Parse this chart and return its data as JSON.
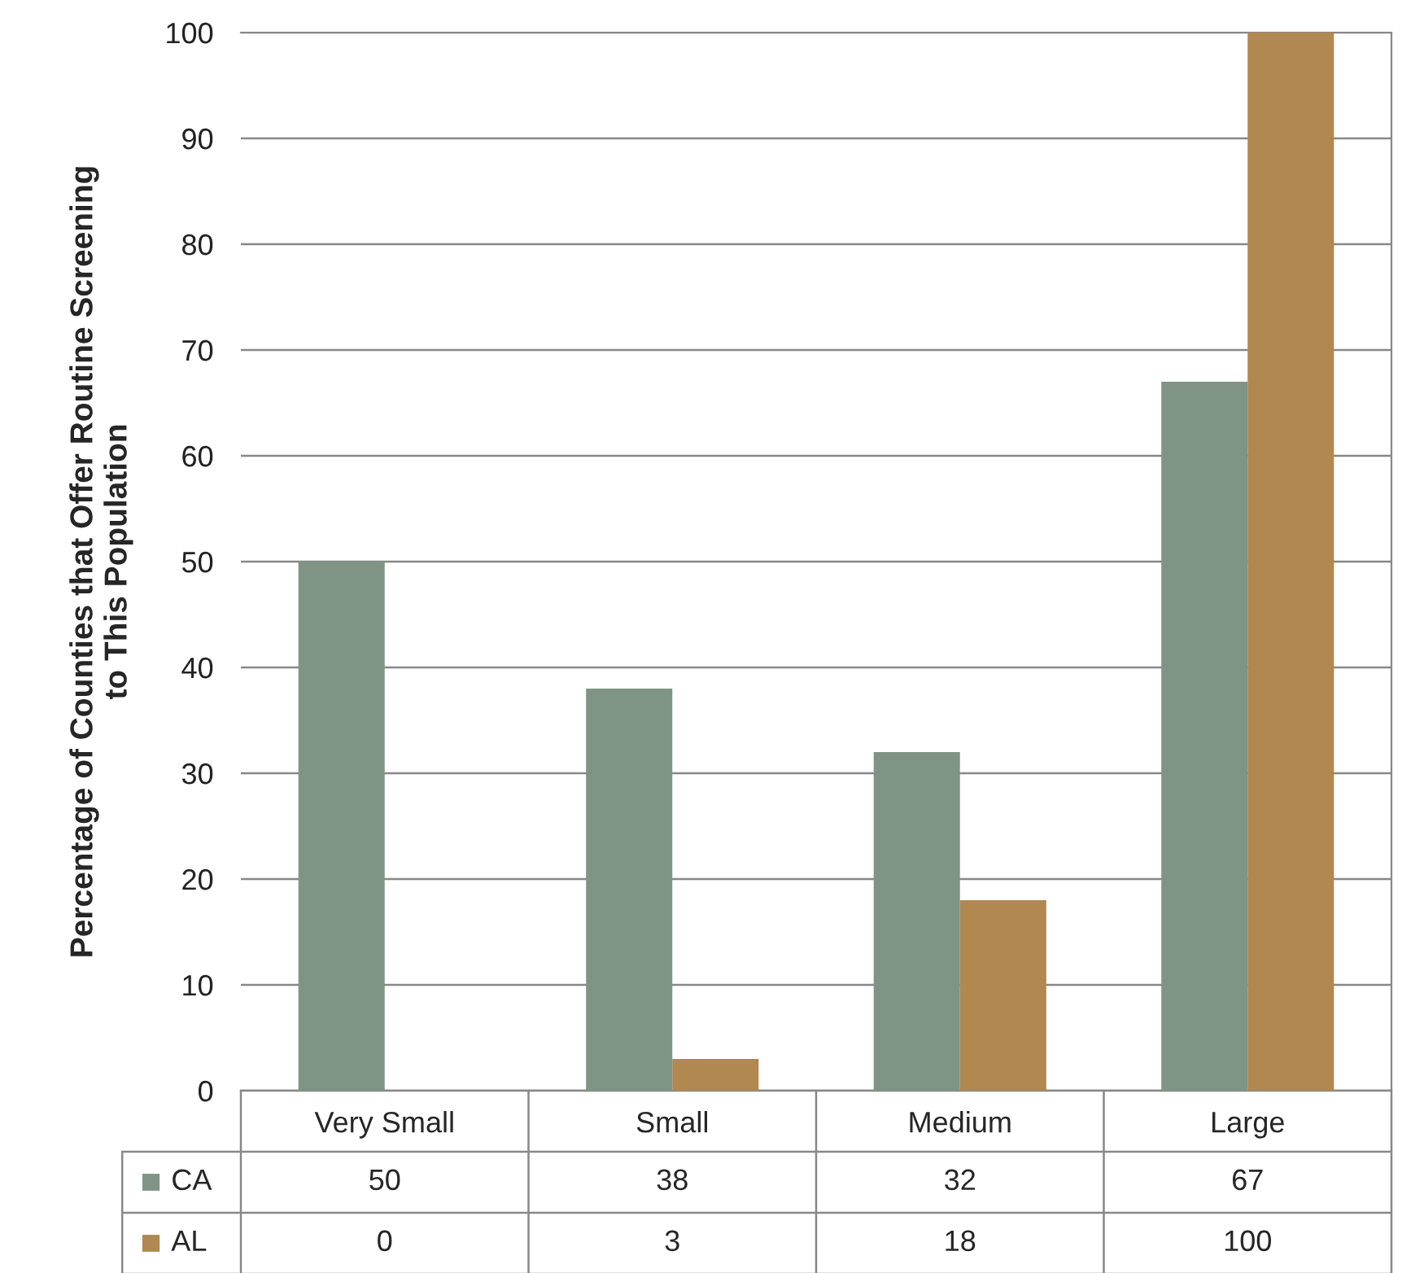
{
  "chart_data": {
    "type": "bar",
    "ylabel": "Percentage of Counties that Offer Routine Screening\nto This Population",
    "categories": [
      "Very Small",
      "Small",
      "Medium",
      "Large"
    ],
    "series": [
      {
        "name": "CA",
        "color": "#7f9485",
        "values": [
          50,
          38,
          32,
          67
        ]
      },
      {
        "name": "AL",
        "color": "#b08850",
        "values": [
          0,
          3,
          18,
          100
        ]
      }
    ],
    "ylim": [
      0,
      100
    ],
    "yticks": [
      0,
      10,
      20,
      30,
      40,
      50,
      60,
      70,
      80,
      90,
      100
    ],
    "grid": "y",
    "legend": "bottom",
    "data_labels": true
  }
}
